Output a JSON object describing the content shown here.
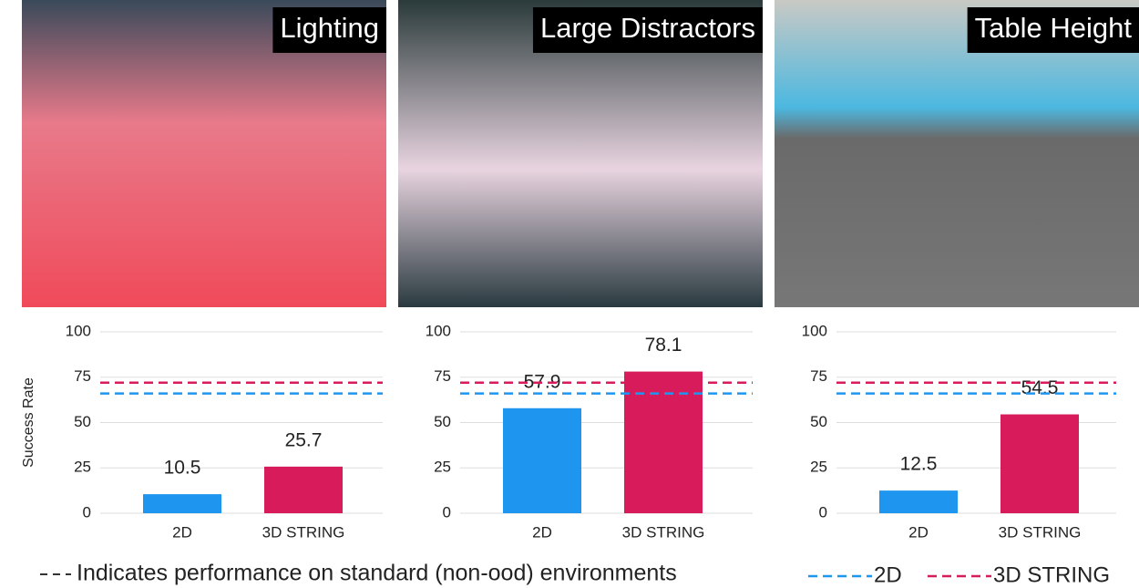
{
  "chart_data": [
    {
      "type": "bar",
      "title": "Lighting",
      "ylabel": "Success Rate",
      "categories": [
        "2D",
        "3D STRING"
      ],
      "values": [
        10.5,
        25.7
      ],
      "colors": [
        "#1e96f0",
        "#d81b5a"
      ],
      "baselines": [
        66,
        72
      ],
      "ylim": [
        0,
        100
      ],
      "yticks": [
        0,
        25,
        50,
        75,
        100
      ],
      "grid": true
    },
    {
      "type": "bar",
      "title": "Large Distractors",
      "categories": [
        "2D",
        "3D STRING"
      ],
      "values": [
        57.9,
        78.1
      ],
      "colors": [
        "#1e96f0",
        "#d81b5a"
      ],
      "baselines": [
        66,
        72
      ],
      "ylim": [
        0,
        100
      ],
      "yticks": [
        0,
        25,
        50,
        75,
        100
      ],
      "grid": true
    },
    {
      "type": "bar",
      "title": "Table Height",
      "categories": [
        "2D",
        "3D STRING"
      ],
      "values": [
        12.5,
        54.5
      ],
      "colors": [
        "#1e96f0",
        "#d81b5a"
      ],
      "baselines": [
        66,
        72
      ],
      "ylim": [
        0,
        100
      ],
      "yticks": [
        0,
        25,
        50,
        75,
        100
      ],
      "grid": true
    }
  ],
  "footnote": "Indicates performance on standard (non-ood) environments"
}
